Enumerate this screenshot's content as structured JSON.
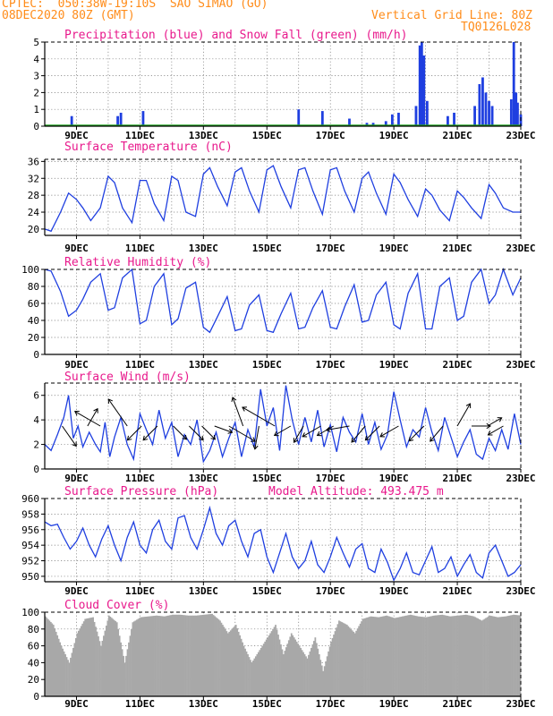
{
  "header": {
    "line1": "CPTEC:  050:38W-19:10S  SAO SIMAO (GO)",
    "line2": "08DEC2020 80Z (GMT)",
    "grid_label": "Vertical Grid Line: 80Z",
    "code": "TQ0126L028"
  },
  "colors": {
    "header": "#ff8c1a",
    "title": "#e8198c",
    "line": "#1f3fe0",
    "snow": "#1fa01f",
    "cloud": "#a8a8a8"
  },
  "x_ticks": [
    "9DEC",
    "11DEC",
    "13DEC",
    "15DEC",
    "17DEC",
    "19DEC",
    "21DEC",
    "23DEC"
  ],
  "chart_data": [
    {
      "type": "bar",
      "title": "Precipitation (blue) and Snow Fall (green) (mm/h)",
      "ylim": [
        0,
        5
      ],
      "yticks": [
        "0",
        "1",
        "2",
        "3",
        "4",
        "5"
      ],
      "xrange": [
        8.0,
        23.0
      ],
      "series": [
        {
          "name": "Precipitation",
          "color": "#1f3fe0",
          "points": [
            [
              8.85,
              0.6
            ],
            [
              10.3,
              0.6
            ],
            [
              10.4,
              0.8
            ],
            [
              11.1,
              0.9
            ],
            [
              16.0,
              1.0
            ],
            [
              16.75,
              0.9
            ],
            [
              17.6,
              0.45
            ],
            [
              18.15,
              0.2
            ],
            [
              18.35,
              0.2
            ],
            [
              18.75,
              0.3
            ],
            [
              18.95,
              0.7
            ],
            [
              19.15,
              0.8
            ],
            [
              19.7,
              1.2
            ],
            [
              19.82,
              4.8
            ],
            [
              19.88,
              5.0
            ],
            [
              19.95,
              4.2
            ],
            [
              20.05,
              1.5
            ],
            [
              20.7,
              0.6
            ],
            [
              20.9,
              0.8
            ],
            [
              21.55,
              1.2
            ],
            [
              21.7,
              2.5
            ],
            [
              21.8,
              2.9
            ],
            [
              21.9,
              2.0
            ],
            [
              22.0,
              1.5
            ],
            [
              22.1,
              1.2
            ],
            [
              22.7,
              1.6
            ],
            [
              22.78,
              5.0
            ],
            [
              22.85,
              2.0
            ],
            [
              22.9,
              1.4
            ],
            [
              23.0,
              0.7
            ]
          ]
        },
        {
          "name": "Snow Fall",
          "color": "#1fa01f",
          "points": []
        }
      ]
    },
    {
      "type": "line",
      "title": "Surface Temperature (nC)",
      "ylim": [
        18.5,
        36.5
      ],
      "yticks": [
        "20",
        "24",
        "28",
        "32",
        "36"
      ],
      "series": [
        {
          "name": "Temperature",
          "x": [
            8.0,
            8.2,
            8.5,
            8.75,
            9.0,
            9.2,
            9.45,
            9.75,
            10.0,
            10.2,
            10.45,
            10.75,
            11.0,
            11.2,
            11.45,
            11.75,
            12.0,
            12.2,
            12.45,
            12.75,
            13.0,
            13.2,
            13.45,
            13.75,
            14.0,
            14.2,
            14.45,
            14.75,
            15.0,
            15.2,
            15.45,
            15.75,
            16.0,
            16.2,
            16.45,
            16.75,
            17.0,
            17.2,
            17.45,
            17.75,
            18.0,
            18.2,
            18.45,
            18.75,
            19.0,
            19.2,
            19.45,
            19.75,
            20.0,
            20.2,
            20.45,
            20.75,
            21.0,
            21.2,
            21.45,
            21.75,
            22.0,
            22.2,
            22.45,
            22.75,
            23.0
          ],
          "values": [
            20.0,
            19.5,
            24.0,
            28.5,
            27.0,
            25.0,
            22.0,
            25.0,
            32.5,
            31.0,
            25.0,
            21.5,
            31.5,
            31.5,
            26.0,
            22.0,
            32.5,
            31.5,
            24.0,
            23.0,
            33.0,
            34.5,
            30.0,
            25.5,
            33.5,
            34.5,
            29.0,
            24.0,
            34.0,
            35.0,
            30.0,
            25.0,
            34.0,
            34.5,
            29.0,
            23.5,
            34.0,
            34.5,
            29.0,
            24.0,
            32.0,
            33.5,
            28.5,
            23.5,
            33.0,
            31.0,
            27.0,
            23.0,
            29.5,
            28.0,
            24.5,
            22.0,
            29.0,
            27.5,
            25.0,
            22.5,
            30.5,
            28.5,
            25.0,
            24.0,
            24.0
          ]
        }
      ]
    },
    {
      "type": "line",
      "title": "Relative Humidity (%)",
      "ylim": [
        0,
        100
      ],
      "yticks": [
        "0",
        "20",
        "40",
        "60",
        "80",
        "100"
      ],
      "series": [
        {
          "name": "Relative Humidity",
          "x": [
            8.0,
            8.2,
            8.5,
            8.75,
            9.0,
            9.2,
            9.45,
            9.75,
            10.0,
            10.2,
            10.45,
            10.75,
            11.0,
            11.2,
            11.45,
            11.75,
            12.0,
            12.2,
            12.45,
            12.75,
            13.0,
            13.2,
            13.45,
            13.75,
            14.0,
            14.2,
            14.45,
            14.75,
            15.0,
            15.2,
            15.45,
            15.75,
            16.0,
            16.2,
            16.45,
            16.75,
            17.0,
            17.2,
            17.45,
            17.75,
            18.0,
            18.2,
            18.45,
            18.75,
            19.0,
            19.2,
            19.45,
            19.75,
            20.0,
            20.2,
            20.45,
            20.75,
            21.0,
            21.2,
            21.45,
            21.75,
            22.0,
            22.2,
            22.45,
            22.75,
            23.0
          ],
          "values": [
            100,
            98,
            74,
            45,
            52,
            65,
            85,
            95,
            52,
            55,
            90,
            100,
            36,
            40,
            80,
            95,
            35,
            42,
            78,
            85,
            32,
            26,
            45,
            68,
            28,
            30,
            58,
            70,
            28,
            26,
            48,
            72,
            30,
            32,
            55,
            75,
            32,
            30,
            56,
            82,
            38,
            40,
            70,
            85,
            35,
            30,
            72,
            95,
            30,
            30,
            80,
            90,
            40,
            45,
            85,
            100,
            60,
            70,
            100,
            70,
            90
          ]
        }
      ]
    },
    {
      "type": "line",
      "title": "Surface Wind (m/s)",
      "ylim": [
        0,
        7
      ],
      "yticks": [
        "0",
        "2",
        "4",
        "6"
      ],
      "series": [
        {
          "name": "Wind Speed",
          "x": [
            8.0,
            8.2,
            8.4,
            8.6,
            8.75,
            8.9,
            9.05,
            9.2,
            9.4,
            9.6,
            9.75,
            9.9,
            10.05,
            10.2,
            10.4,
            10.6,
            10.8,
            11.0,
            11.2,
            11.4,
            11.6,
            11.8,
            12.0,
            12.2,
            12.4,
            12.6,
            12.8,
            13.0,
            13.2,
            13.4,
            13.6,
            13.8,
            14.0,
            14.2,
            14.4,
            14.6,
            14.8,
            15.0,
            15.2,
            15.4,
            15.6,
            15.8,
            16.0,
            16.2,
            16.4,
            16.6,
            16.8,
            17.0,
            17.2,
            17.4,
            17.6,
            17.8,
            18.0,
            18.2,
            18.4,
            18.6,
            18.8,
            19.0,
            19.2,
            19.4,
            19.6,
            19.8,
            20.0,
            20.2,
            20.4,
            20.6,
            20.8,
            21.0,
            21.2,
            21.4,
            21.6,
            21.8,
            22.0,
            22.2,
            22.4,
            22.6,
            22.8,
            23.0
          ],
          "values": [
            2.0,
            1.5,
            2.8,
            4.2,
            6.0,
            2.5,
            3.5,
            1.8,
            3.0,
            2.0,
            1.4,
            3.8,
            1.0,
            2.6,
            4.2,
            2.0,
            0.8,
            4.5,
            3.2,
            2.0,
            4.8,
            2.5,
            3.8,
            1.0,
            2.8,
            2.0,
            4.0,
            0.6,
            1.5,
            3.0,
            1.0,
            2.5,
            3.8,
            1.0,
            3.2,
            1.8,
            6.5,
            3.5,
            5.0,
            1.5,
            6.8,
            4.0,
            2.0,
            4.2,
            2.2,
            4.8,
            1.8,
            3.6,
            1.4,
            4.2,
            3.0,
            2.2,
            4.5,
            2.0,
            3.8,
            1.6,
            2.8,
            6.3,
            4.0,
            1.8,
            3.2,
            2.6,
            5.0,
            3.0,
            1.5,
            4.2,
            2.6,
            1.0,
            2.2,
            3.2,
            1.2,
            0.8,
            2.5,
            1.5,
            3.2,
            1.6,
            4.5,
            2.0
          ]
        }
      ],
      "arrows": [
        {
          "x": 8.55,
          "dir": 55,
          "mag": 0.75
        },
        {
          "x": 9.35,
          "dir": -60,
          "mag": 0.55
        },
        {
          "x": 9.75,
          "dir": 210,
          "mag": 0.95
        },
        {
          "x": 10.6,
          "dir": 235,
          "mag": 1.1
        },
        {
          "x": 11.05,
          "dir": 135,
          "mag": 0.55
        },
        {
          "x": 11.55,
          "dir": 135,
          "mag": 0.55
        },
        {
          "x": 12.05,
          "dir": 45,
          "mag": 0.5
        },
        {
          "x": 12.55,
          "dir": 45,
          "mag": 0.55
        },
        {
          "x": 12.95,
          "dir": 45,
          "mag": 0.5
        },
        {
          "x": 13.35,
          "dir": 20,
          "mag": 0.5
        },
        {
          "x": 13.8,
          "dir": 30,
          "mag": 1.0
        },
        {
          "x": 14.25,
          "dir": 250,
          "mag": 1.0
        },
        {
          "x": 14.75,
          "dir": 100,
          "mag": 0.7
        },
        {
          "x": 15.25,
          "dir": 210,
          "mag": 1.3
        },
        {
          "x": 15.75,
          "dir": 150,
          "mag": 0.5
        },
        {
          "x": 16.15,
          "dir": 120,
          "mag": 0.5
        },
        {
          "x": 16.7,
          "dir": 150,
          "mag": 0.6
        },
        {
          "x": 17.1,
          "dir": 150,
          "mag": 0.5
        },
        {
          "x": 17.6,
          "dir": 170,
          "mag": 0.7
        },
        {
          "x": 18.1,
          "dir": 130,
          "mag": 0.6
        },
        {
          "x": 18.55,
          "dir": 135,
          "mag": 0.55
        },
        {
          "x": 19.15,
          "dir": 150,
          "mag": 0.6
        },
        {
          "x": 19.95,
          "dir": 135,
          "mag": 0.6
        },
        {
          "x": 20.55,
          "dir": 130,
          "mag": 0.55
        },
        {
          "x": 21.0,
          "dir": 300,
          "mag": 0.8
        },
        {
          "x": 21.45,
          "dir": 0,
          "mag": 0.5
        },
        {
          "x": 21.95,
          "dir": 330,
          "mag": 0.4
        },
        {
          "x": 22.45,
          "dir": 150,
          "mag": 0.45
        }
      ]
    },
    {
      "type": "line",
      "title": "Surface Pressure (hPa)",
      "annotation": "Model Altitude: 493.475 m",
      "ylim": [
        949.3,
        960
      ],
      "yticks": [
        "950",
        "952",
        "954",
        "956",
        "958",
        "960"
      ],
      "series": [
        {
          "name": "Surface Pressure",
          "x": [
            8.0,
            8.2,
            8.4,
            8.6,
            8.8,
            9.0,
            9.2,
            9.4,
            9.6,
            9.8,
            10.0,
            10.2,
            10.4,
            10.6,
            10.8,
            11.0,
            11.2,
            11.4,
            11.6,
            11.8,
            12.0,
            12.2,
            12.4,
            12.6,
            12.8,
            13.0,
            13.2,
            13.4,
            13.6,
            13.8,
            14.0,
            14.2,
            14.4,
            14.6,
            14.8,
            15.0,
            15.2,
            15.4,
            15.6,
            15.8,
            16.0,
            16.2,
            16.4,
            16.6,
            16.8,
            17.0,
            17.2,
            17.4,
            17.6,
            17.8,
            18.0,
            18.2,
            18.4,
            18.6,
            18.8,
            19.0,
            19.2,
            19.4,
            19.6,
            19.8,
            20.0,
            20.2,
            20.4,
            20.6,
            20.8,
            21.0,
            21.2,
            21.4,
            21.6,
            21.8,
            22.0,
            22.2,
            22.4,
            22.6,
            22.8,
            23.0
          ],
          "values": [
            957.0,
            956.5,
            956.7,
            955.0,
            953.5,
            954.5,
            956.2,
            954.0,
            952.5,
            954.8,
            956.5,
            954.0,
            952.0,
            955.0,
            957.0,
            954.0,
            953.0,
            956.0,
            957.2,
            954.5,
            953.5,
            957.5,
            957.8,
            955.0,
            953.5,
            956.0,
            958.8,
            955.5,
            954.0,
            956.5,
            957.2,
            954.5,
            952.5,
            955.5,
            956.0,
            952.5,
            950.5,
            953.0,
            955.5,
            952.5,
            951.0,
            952.0,
            954.5,
            951.5,
            950.5,
            952.5,
            955.0,
            953.0,
            951.2,
            953.5,
            954.2,
            951.0,
            950.5,
            953.5,
            951.8,
            949.5,
            951.0,
            953.0,
            950.5,
            950.2,
            952.0,
            953.8,
            950.5,
            951.0,
            952.5,
            950.0,
            951.5,
            952.8,
            950.5,
            949.8,
            953.0,
            954.0,
            952.0,
            950.0,
            950.5,
            951.5
          ]
        }
      ]
    },
    {
      "type": "bar",
      "title": "Cloud Cover (%)",
      "ylim": [
        0,
        100
      ],
      "yticks": [
        "0",
        "20",
        "40",
        "60",
        "80",
        "100"
      ],
      "series": [
        {
          "name": "Cloud Cover",
          "x": [
            8.0,
            8.25,
            8.5,
            8.75,
            9.0,
            9.25,
            9.5,
            9.75,
            10.0,
            10.25,
            10.5,
            10.75,
            11.0,
            11.25,
            11.5,
            11.75,
            12.0,
            12.25,
            12.5,
            12.75,
            13.0,
            13.25,
            13.5,
            13.75,
            14.0,
            14.25,
            14.5,
            14.75,
            15.0,
            15.25,
            15.5,
            15.75,
            16.0,
            16.25,
            16.5,
            16.75,
            17.0,
            17.25,
            17.5,
            17.75,
            18.0,
            18.25,
            18.5,
            18.75,
            19.0,
            19.25,
            19.5,
            19.75,
            20.0,
            20.25,
            20.5,
            20.75,
            21.0,
            21.25,
            21.5,
            21.75,
            22.0,
            22.25,
            22.5,
            22.75,
            23.0
          ],
          "values": [
            95,
            85,
            60,
            40,
            75,
            92,
            94,
            60,
            96,
            88,
            40,
            88,
            94,
            95,
            96,
            95,
            97,
            97,
            96,
            96,
            97,
            98,
            90,
            75,
            85,
            60,
            40,
            55,
            70,
            85,
            50,
            75,
            60,
            45,
            70,
            30,
            65,
            90,
            85,
            75,
            92,
            95,
            94,
            96,
            93,
            95,
            97,
            95,
            94,
            96,
            97,
            95,
            96,
            97,
            95,
            90,
            96,
            94,
            95,
            97,
            96
          ]
        }
      ]
    }
  ]
}
